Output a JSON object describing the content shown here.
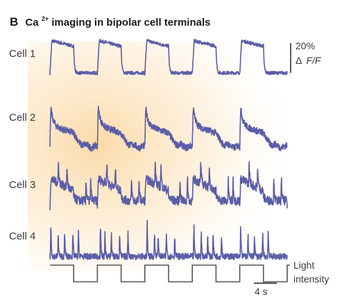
{
  "chart_data": {
    "type": "line",
    "panel_letter": "B",
    "title_prefix": "Ca",
    "title_superscript": "2+",
    "title_suffix": " imaging in bipolar cell terminals",
    "series": [
      {
        "name": "Cell 1"
      },
      {
        "name": "Cell 2"
      },
      {
        "name": "Cell 3"
      },
      {
        "name": "Cell 4"
      }
    ],
    "stimulus": {
      "label_line1": "Light",
      "label_line2": "intensity",
      "cycles": 5,
      "high_fraction": 0.5
    },
    "scale_bar": {
      "y_value": "20%",
      "y_unit_symbol": "Δ",
      "y_unit_rest": "F/F",
      "x_value": "4 s"
    },
    "trace_color": "#5a5da8",
    "stimulus_color": "#555555",
    "background_glow": "#fbd49a"
  }
}
